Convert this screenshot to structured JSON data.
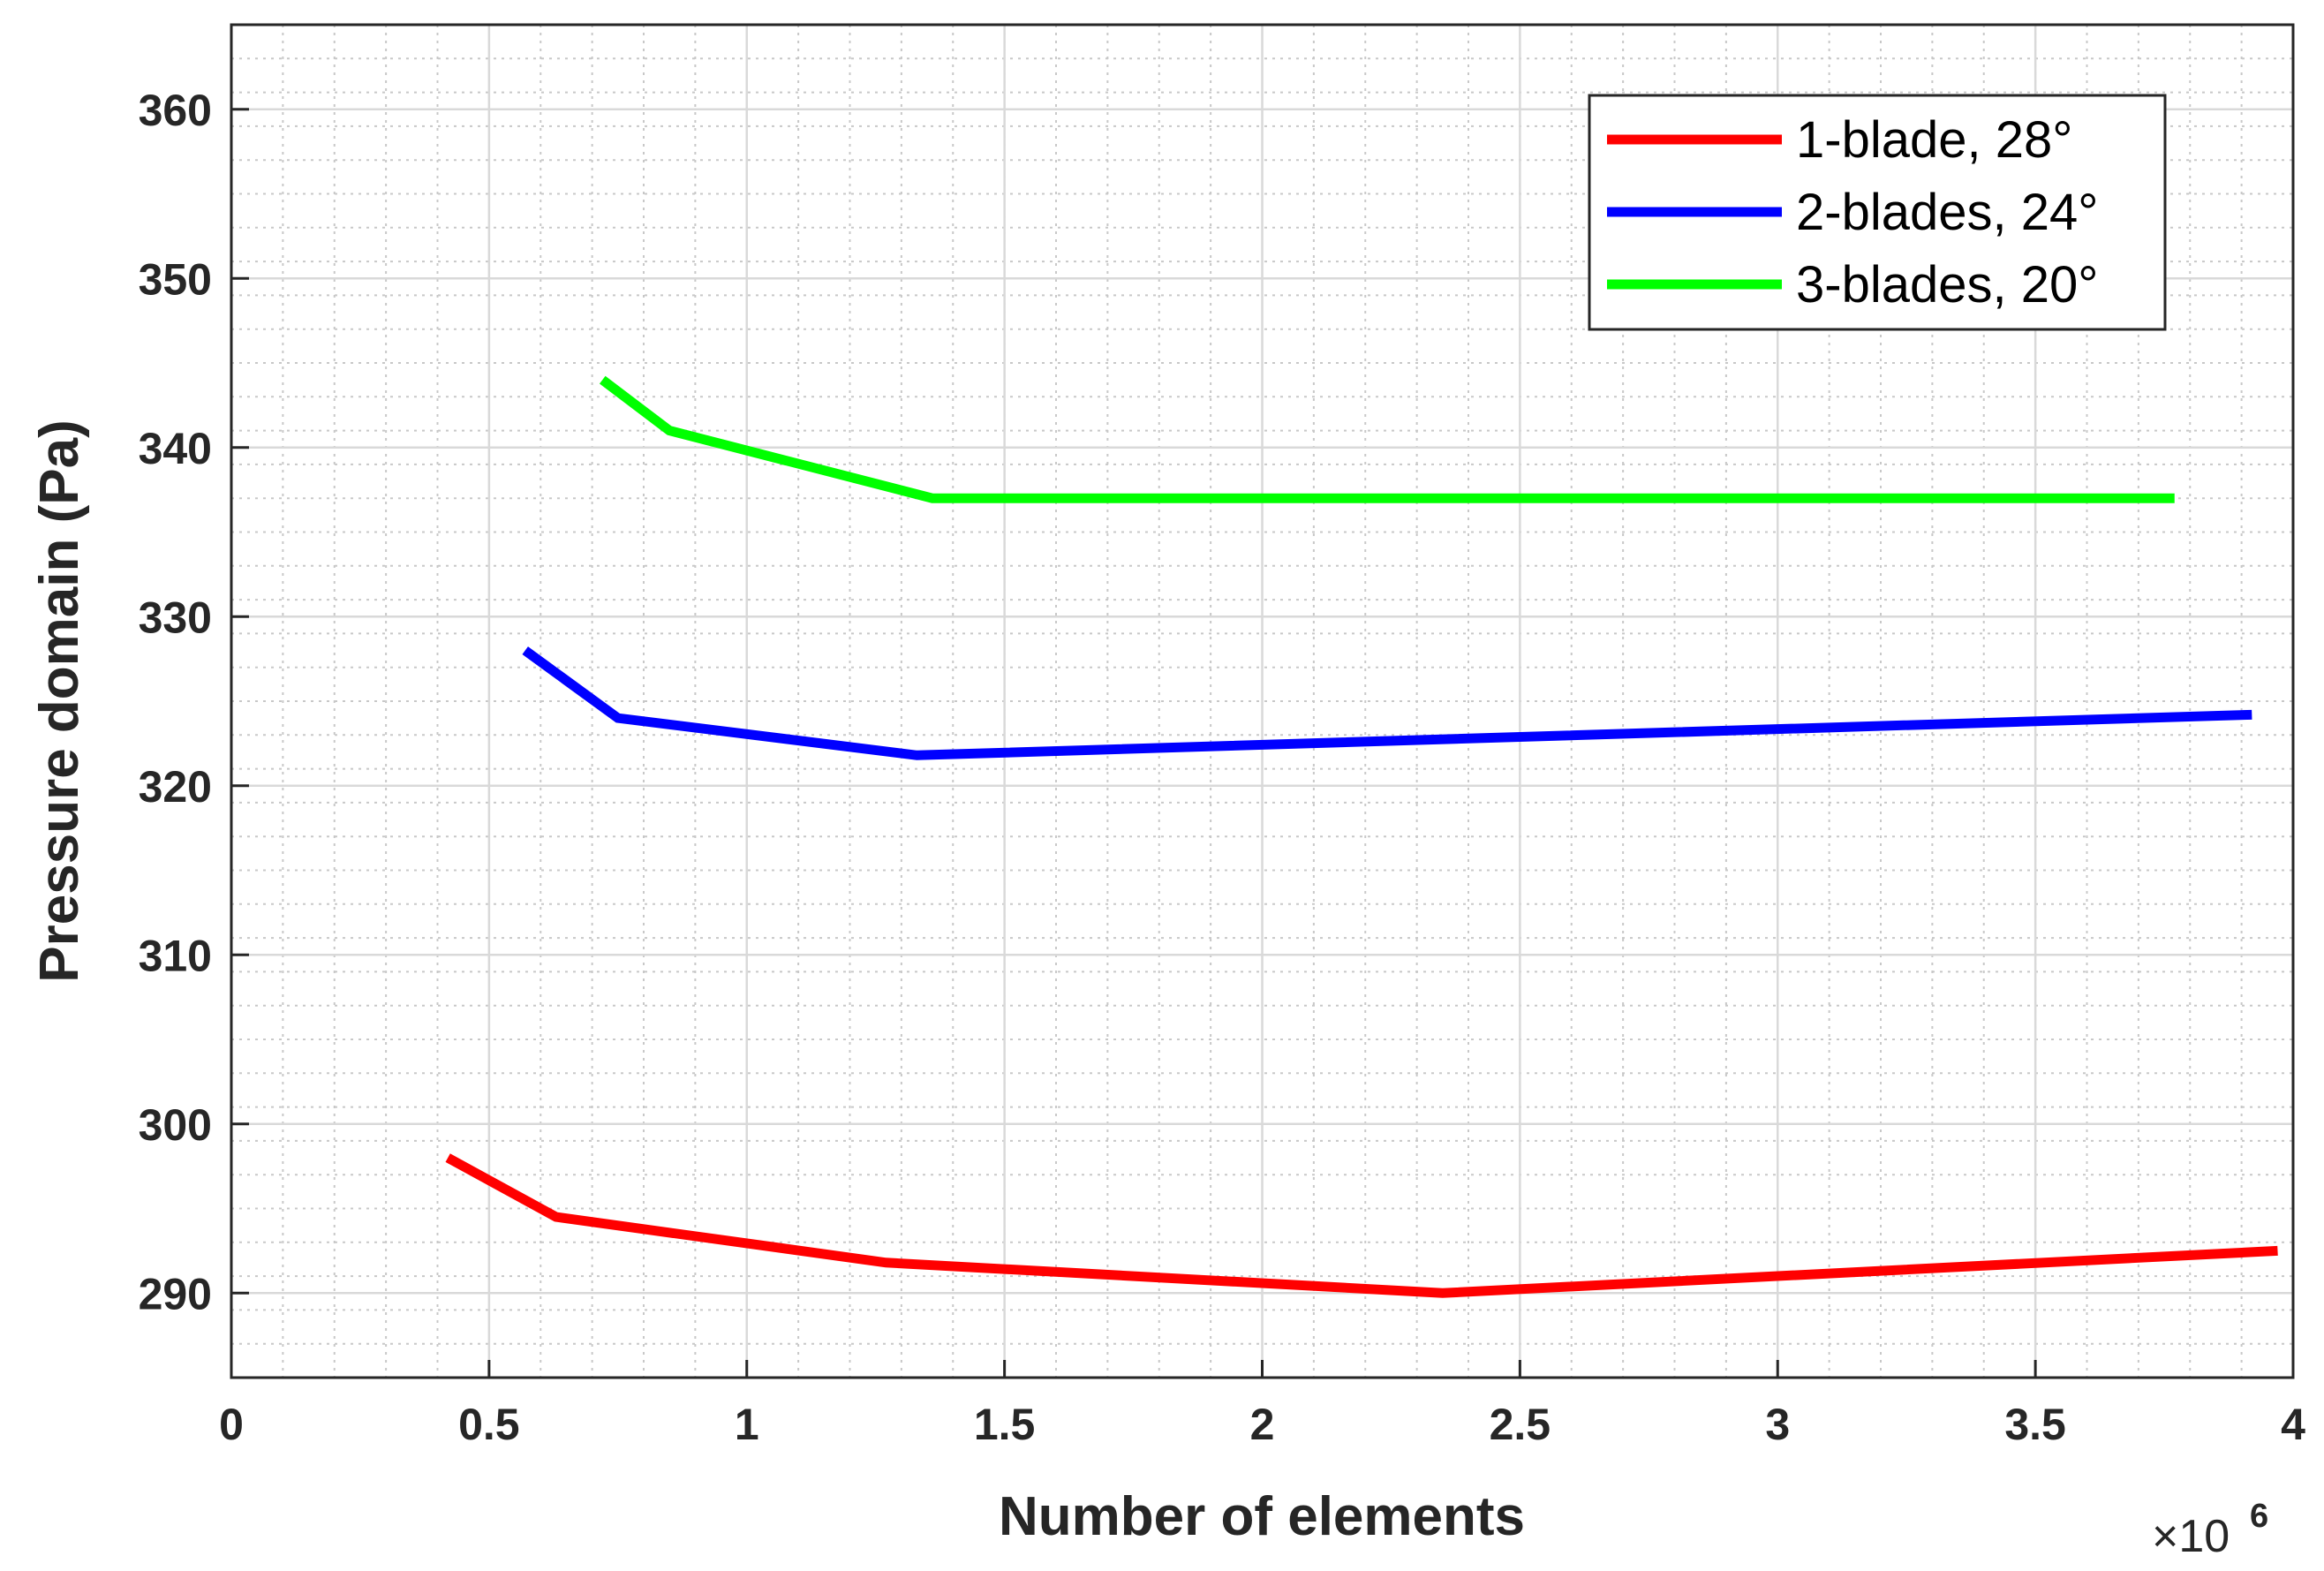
{
  "chart_data": {
    "type": "line",
    "xlabel": "Number of elements",
    "ylabel": "Pressure domain (Pa)",
    "x_exponent_base": "×10",
    "x_exponent_power": "6",
    "xlim": [
      0,
      4
    ],
    "ylim": [
      285,
      365
    ],
    "x_ticks": [
      "0",
      "0.5",
      "1",
      "1.5",
      "2",
      "2.5",
      "3",
      "3.5",
      "4"
    ],
    "y_ticks": [
      "290",
      "300",
      "310",
      "320",
      "330",
      "340",
      "350",
      "360"
    ],
    "grid": true,
    "minor_grid": true,
    "legend_position": "top-right",
    "series": [
      {
        "name": "1-blade, 28°",
        "color": "#ff0000",
        "x": [
          0.42,
          0.63,
          1.27,
          2.35,
          3.97
        ],
        "y": [
          298,
          294.5,
          291.8,
          290,
          292.5
        ]
      },
      {
        "name": "2-blades, 24°",
        "color": "#0000ff",
        "x": [
          0.57,
          0.75,
          1.33,
          3.92
        ],
        "y": [
          328,
          324,
          321.8,
          324.2
        ]
      },
      {
        "name": "3-blades, 20°",
        "color": "#00ff00",
        "x": [
          0.72,
          0.85,
          1.36,
          3.77
        ],
        "y": [
          344,
          341,
          337,
          337
        ]
      }
    ]
  }
}
